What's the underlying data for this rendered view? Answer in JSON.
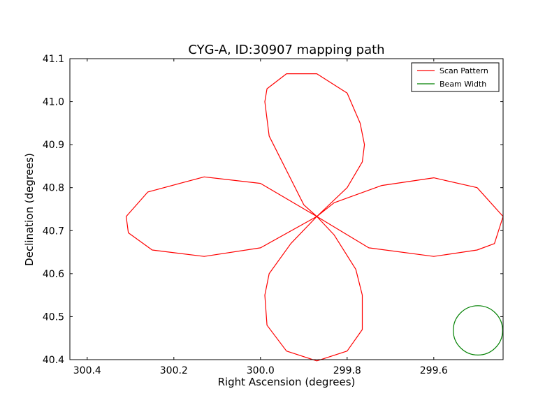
{
  "chart_data": {
    "type": "line",
    "title": "CYG-A, ID:30907 mapping path",
    "xlabel": "Right Ascension (degrees)",
    "ylabel": "Declination (degrees)",
    "xlim": [
      300.44,
      299.44
    ],
    "ylim": [
      40.4,
      41.1
    ],
    "x_inverted": true,
    "xticks": [
      300.4,
      300.2,
      300.0,
      299.8,
      299.6
    ],
    "xtick_labels": [
      "300.4",
      "300.2",
      "300.0",
      "299.8",
      "299.6"
    ],
    "yticks": [
      40.4,
      40.5,
      40.6,
      40.7,
      40.8,
      40.9,
      41.0,
      41.1
    ],
    "ytick_labels": [
      "40.4",
      "40.5",
      "40.6",
      "40.7",
      "40.8",
      "40.9",
      "41.0",
      "41.1"
    ],
    "grid": false,
    "legend_position": "top-right",
    "series": [
      {
        "name": "Scan Pattern",
        "color": "#ff0000",
        "x": [
          299.87,
          299.83,
          299.72,
          299.6,
          299.5,
          299.44,
          299.46,
          299.5,
          299.6,
          299.75,
          299.87,
          299.9,
          299.93,
          299.98,
          299.99,
          299.985,
          299.94,
          299.87,
          299.8,
          299.77,
          299.76,
          299.765,
          299.8,
          299.87,
          300.0,
          300.13,
          300.26,
          300.31,
          300.305,
          300.25,
          300.13,
          300.0,
          299.87,
          299.83,
          299.78,
          299.765,
          299.765,
          299.8,
          299.87,
          299.94,
          299.985,
          299.99,
          299.98,
          299.93,
          299.87
        ],
        "y": [
          40.733,
          40.765,
          40.805,
          40.823,
          40.8,
          40.733,
          40.67,
          40.655,
          40.64,
          40.66,
          40.733,
          40.76,
          40.82,
          40.92,
          41.0,
          41.03,
          41.065,
          41.065,
          41.02,
          40.95,
          40.9,
          40.86,
          40.8,
          40.733,
          40.81,
          40.825,
          40.79,
          40.733,
          40.695,
          40.655,
          40.64,
          40.66,
          40.733,
          40.69,
          40.61,
          40.55,
          40.47,
          40.42,
          40.397,
          40.42,
          40.48,
          40.55,
          40.6,
          40.67,
          40.733
        ]
      },
      {
        "name": "Beam Width",
        "color": "#008000",
        "center": [
          299.498,
          40.468
        ],
        "radius_deg": 0.057
      }
    ]
  }
}
